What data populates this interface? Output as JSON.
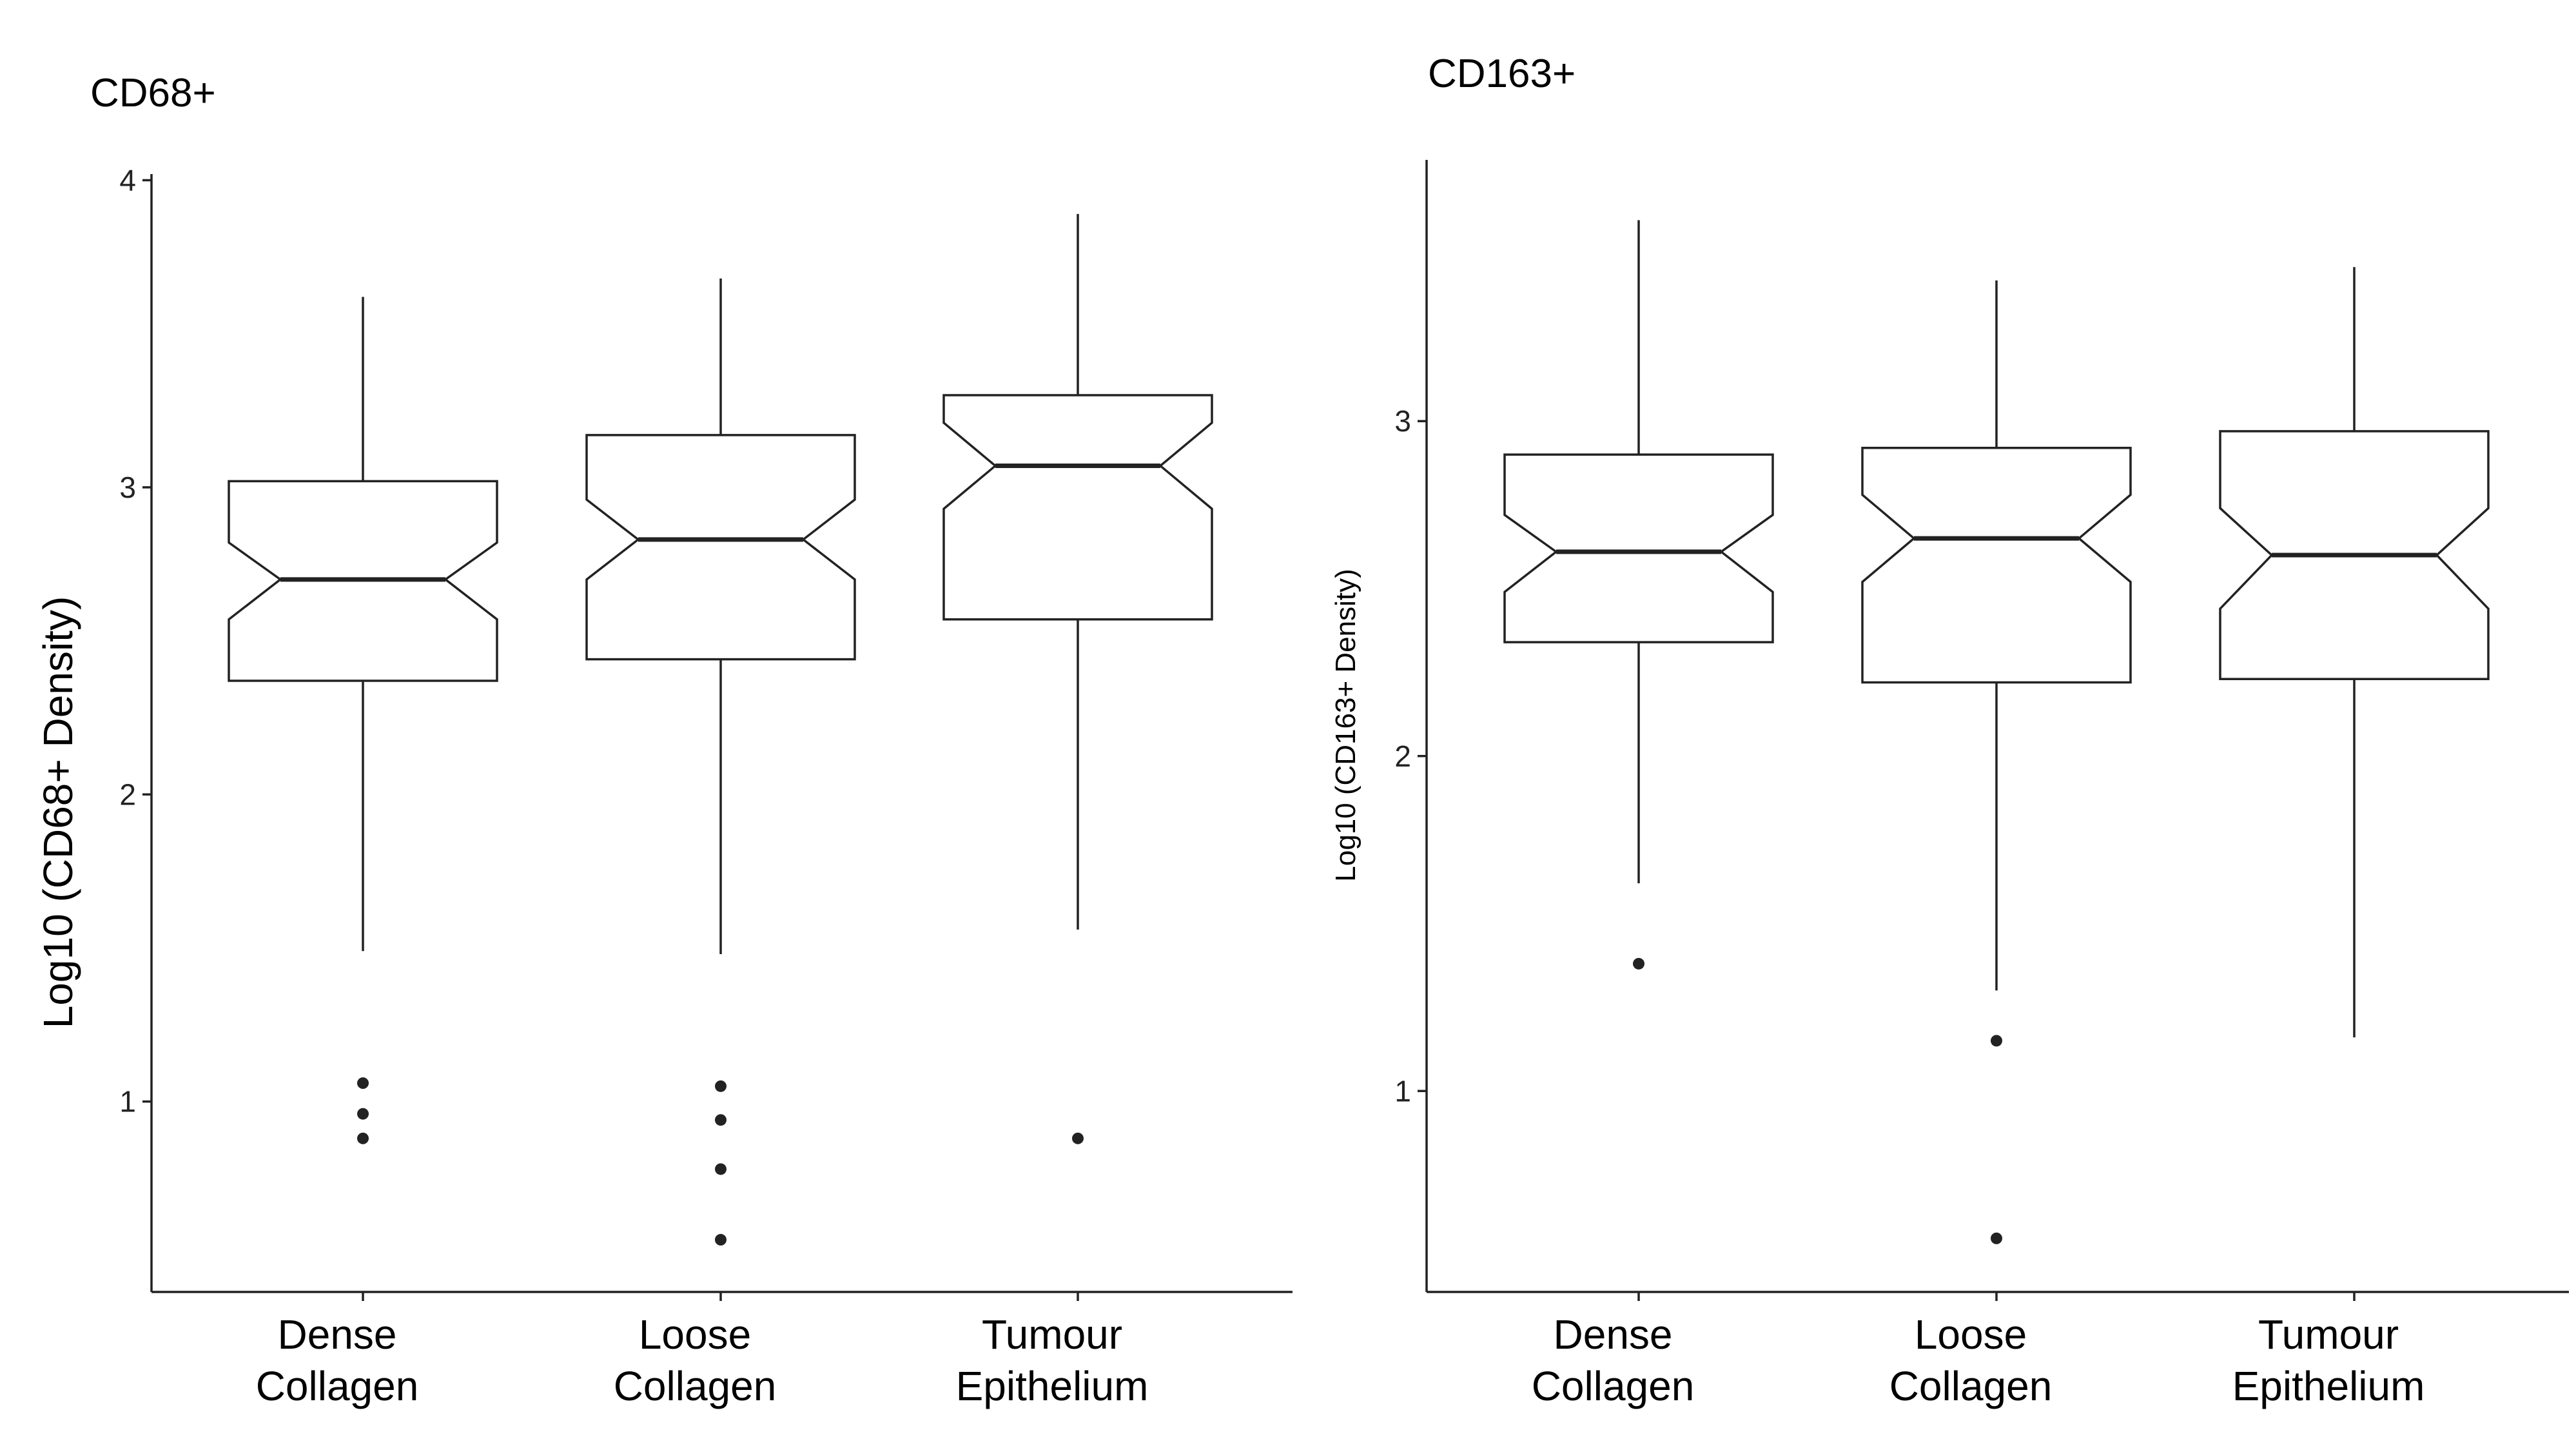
{
  "chart_data": [
    {
      "type": "box",
      "variant": "notched",
      "title": "CD68+",
      "xlabel": "",
      "ylabel": "Log10 (CD68+ Density)",
      "ylim": [
        0.38,
        4.02
      ],
      "yticks": [
        1,
        2,
        3,
        4
      ],
      "yticklabels": [
        "1",
        "2",
        "3",
        "4"
      ],
      "grid": false,
      "categories": [
        [
          "Dense",
          "Collagen"
        ],
        [
          "Loose",
          "Collagen"
        ],
        [
          "Tumour",
          "Epithelium"
        ]
      ],
      "boxes": [
        {
          "category": "Dense Collagen",
          "whisker_low": 1.49,
          "q1": 2.37,
          "median": 2.7,
          "q3": 3.02,
          "whisker_high": 3.62,
          "notch_low": 2.57,
          "notch_high": 2.82,
          "outliers": [
            1.06,
            0.96,
            0.88
          ]
        },
        {
          "category": "Loose Collagen",
          "whisker_low": 1.48,
          "q1": 2.44,
          "median": 2.83,
          "q3": 3.17,
          "whisker_high": 3.68,
          "notch_low": 2.7,
          "notch_high": 2.96,
          "outliers": [
            1.05,
            0.94,
            0.78,
            0.55
          ]
        },
        {
          "category": "Tumour Epithelium",
          "whisker_low": 1.56,
          "q1": 2.57,
          "median": 3.07,
          "q3": 3.3,
          "whisker_high": 3.89,
          "notch_low": 2.93,
          "notch_high": 3.21,
          "outliers": [
            0.88
          ]
        }
      ]
    },
    {
      "type": "box",
      "variant": "notched",
      "title": "CD163+",
      "xlabel": "",
      "ylabel": "Log10 (CD163+ Density)",
      "ylim": [
        0.4,
        3.78
      ],
      "yticks": [
        1,
        2,
        3
      ],
      "yticklabels": [
        "1",
        "2",
        "3"
      ],
      "grid": false,
      "categories": [
        [
          "Dense",
          "Collagen"
        ],
        [
          "Loose",
          "Collagen"
        ],
        [
          "Tumour",
          "Epithelium"
        ]
      ],
      "boxes": [
        {
          "category": "Dense Collagen",
          "whisker_low": 1.62,
          "q1": 2.34,
          "median": 2.61,
          "q3": 2.9,
          "whisker_high": 3.6,
          "notch_low": 2.49,
          "notch_high": 2.72,
          "outliers": [
            1.38
          ]
        },
        {
          "category": "Loose Collagen",
          "whisker_low": 1.3,
          "q1": 2.22,
          "median": 2.65,
          "q3": 2.92,
          "whisker_high": 3.42,
          "notch_low": 2.52,
          "notch_high": 2.78,
          "outliers": [
            1.15,
            0.56
          ]
        },
        {
          "category": "Tumour Epithelium",
          "whisker_low": 1.16,
          "q1": 2.23,
          "median": 2.6,
          "q3": 2.97,
          "whisker_high": 3.46,
          "notch_low": 2.44,
          "notch_high": 2.74,
          "outliers": []
        }
      ]
    }
  ]
}
